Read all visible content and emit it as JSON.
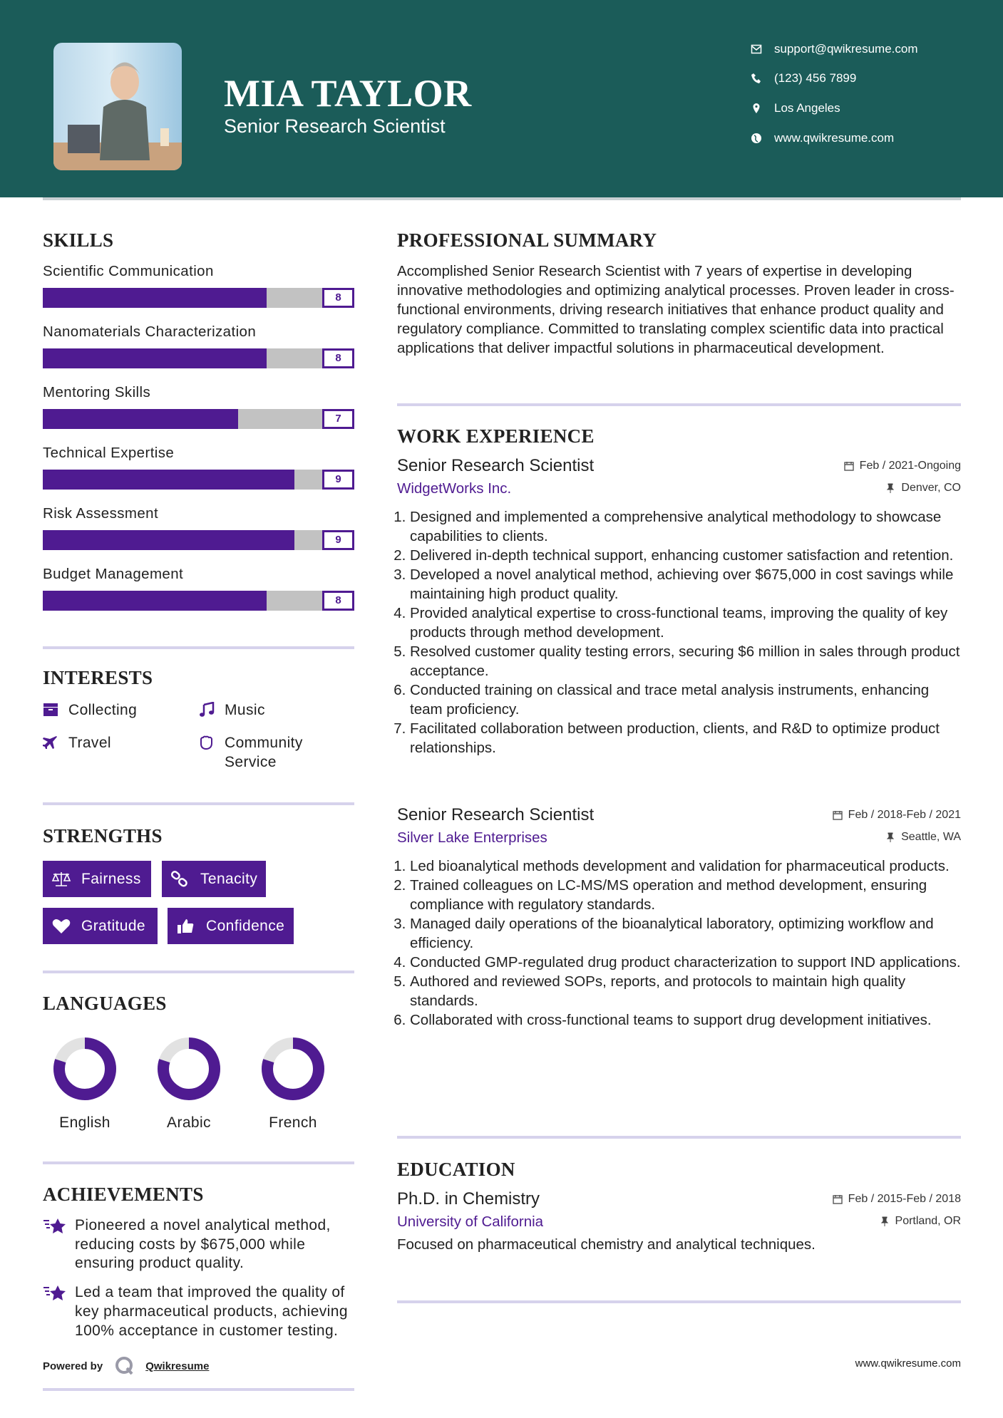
{
  "header": {
    "name": "MIA TAYLOR",
    "title": "Senior Research Scientist",
    "contacts": [
      {
        "icon": "envelope-icon",
        "text": "support@qwikresume.com"
      },
      {
        "icon": "phone-icon",
        "text": "(123) 456 7899"
      },
      {
        "icon": "map-pin-icon",
        "text": "Los Angeles"
      },
      {
        "icon": "globe-icon",
        "text": "www.qwikresume.com"
      }
    ]
  },
  "colors": {
    "header_bg": "#1b5c59",
    "accent": "#4f1b91",
    "bar_track": "#c2c2c2",
    "divider": "#d6d2ec"
  },
  "skills": {
    "heading": "SKILLS",
    "max": 10,
    "items": [
      {
        "label": "Scientific Communication",
        "score": 8,
        "score_text": "8"
      },
      {
        "label": "Nanomaterials Characterization",
        "score": 8,
        "score_text": "8"
      },
      {
        "label": "Mentoring Skills",
        "score": 7,
        "score_text": "7"
      },
      {
        "label": "Technical Expertise",
        "score": 9,
        "score_text": "9"
      },
      {
        "label": "Risk Assessment",
        "score": 9,
        "score_text": "9"
      },
      {
        "label": "Budget Management",
        "score": 8,
        "score_text": "8"
      }
    ]
  },
  "interests": {
    "heading": "INTERESTS",
    "items": [
      {
        "icon": "archive-box-icon",
        "label": "Collecting"
      },
      {
        "icon": "music-note-icon",
        "label": "Music"
      },
      {
        "icon": "airplane-icon",
        "label": "Travel"
      },
      {
        "icon": "hand-icon",
        "label": "Community Service"
      }
    ]
  },
  "strengths": {
    "heading": "STRENGTHS",
    "items": [
      {
        "icon": "scale-icon",
        "label": "Fairness"
      },
      {
        "icon": "link-icon",
        "label": "Tenacity"
      },
      {
        "icon": "heart-icon",
        "label": "Gratitude"
      },
      {
        "icon": "thumbs-up-icon",
        "label": "Confidence"
      }
    ]
  },
  "languages": {
    "heading": "LANGUAGES",
    "items": [
      {
        "label": "English",
        "level": 0.8
      },
      {
        "label": "Arabic",
        "level": 0.8
      },
      {
        "label": "French",
        "level": 0.8
      }
    ]
  },
  "achievements": {
    "heading": "ACHIEVEMENTS",
    "items": [
      "Pioneered a novel analytical method, reducing costs by $675,000 while ensuring product quality.",
      "Led a team that improved the quality of key pharmaceutical products, achieving 100% acceptance in customer testing."
    ]
  },
  "summary": {
    "heading": "PROFESSIONAL SUMMARY",
    "text": "Accomplished Senior Research Scientist with 7 years of expertise in developing innovative methodologies and optimizing analytical processes. Proven leader in cross-functional environments, driving research initiatives that enhance product quality and regulatory compliance. Committed to translating complex scientific data into practical applications that deliver impactful solutions in pharmaceutical development."
  },
  "experience": {
    "heading": "WORK EXPERIENCE",
    "jobs": [
      {
        "title": "Senior Research Scientist",
        "dates": "Feb / 2021-Ongoing",
        "company": "WidgetWorks Inc.",
        "location": "Denver, CO",
        "bullets": [
          "Designed and implemented a comprehensive analytical methodology to showcase capabilities to clients.",
          "Delivered in-depth technical support, enhancing customer satisfaction and retention.",
          "Developed a novel analytical method, achieving over $675,000 in cost savings while maintaining high product quality.",
          "Provided analytical expertise to cross-functional teams, improving the quality of key products through method development.",
          "Resolved customer quality testing errors, securing $6 million in sales through product acceptance.",
          "Conducted training on classical and trace metal analysis instruments, enhancing team proficiency.",
          "Facilitated collaboration between production, clients, and R&D to optimize product relationships."
        ]
      },
      {
        "title": "Senior Research Scientist",
        "dates": "Feb / 2018-Feb / 2021",
        "company": "Silver Lake Enterprises",
        "location": "Seattle, WA",
        "bullets": [
          "Led bioanalytical methods development and validation for pharmaceutical products.",
          "Trained colleagues on LC-MS/MS operation and method development, ensuring compliance with regulatory standards.",
          "Managed daily operations of the bioanalytical laboratory, optimizing workflow and efficiency.",
          "Conducted GMP-regulated drug product characterization to support IND applications.",
          "Authored and reviewed SOPs, reports, and protocols to maintain high quality standards.",
          "Collaborated with cross-functional teams to support drug development initiatives."
        ]
      }
    ]
  },
  "education": {
    "heading": "EDUCATION",
    "degree": "Ph.D. in Chemistry",
    "dates": "Feb / 2015-Feb / 2018",
    "school": "University of California",
    "location": "Portland, OR",
    "description": "Focused on pharmaceutical chemistry and analytical techniques."
  },
  "footer": {
    "powered_by": "Powered by",
    "brand": "Qwikresume",
    "website": "www.qwikresume.com"
  }
}
